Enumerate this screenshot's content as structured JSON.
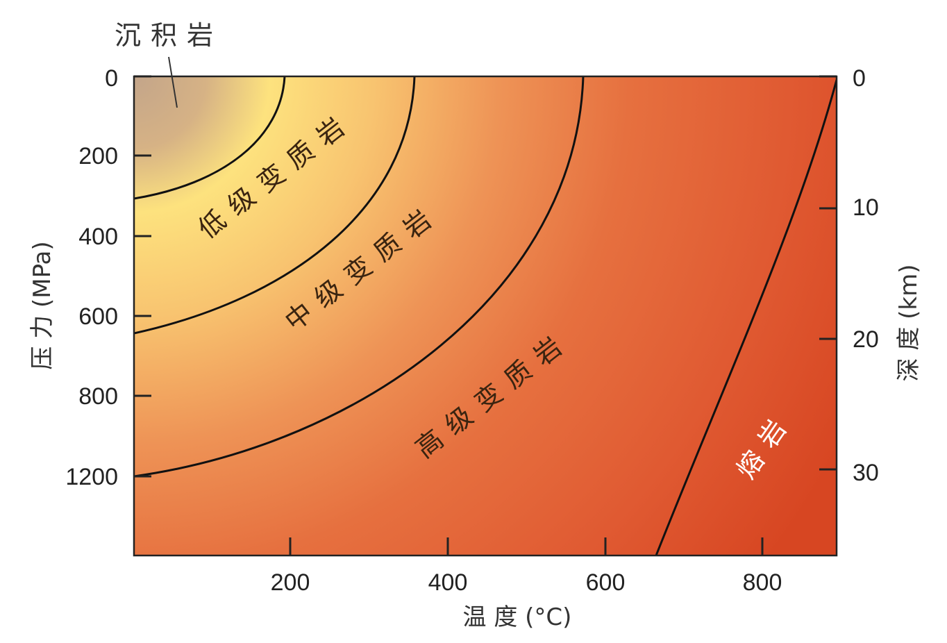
{
  "callout": {
    "sediment_label": "沉积岩"
  },
  "zones": {
    "low_grade": "低级变质岩",
    "mid_grade": "中级变质岩",
    "high_grade": "高级变质岩",
    "melt": "熔岩"
  },
  "axes": {
    "x_title": "温 度 (°C)",
    "y_left_title": "压 力 (MPa)",
    "y_right_title": "深 度 (km)",
    "x_ticks": [
      "200",
      "400",
      "600",
      "800"
    ],
    "y_left_ticks": [
      "0",
      "200",
      "400",
      "600",
      "800",
      "1200"
    ],
    "y_right_ticks": [
      "0",
      "10",
      "20",
      "30"
    ]
  },
  "colors": {
    "sediment": "#c9a98a",
    "low_grade": "#f7dc78",
    "mid_grade": "#f0a860",
    "high_grade": "#e56a3e",
    "melt": "#db4a22",
    "boundary_line": "#111111"
  }
}
